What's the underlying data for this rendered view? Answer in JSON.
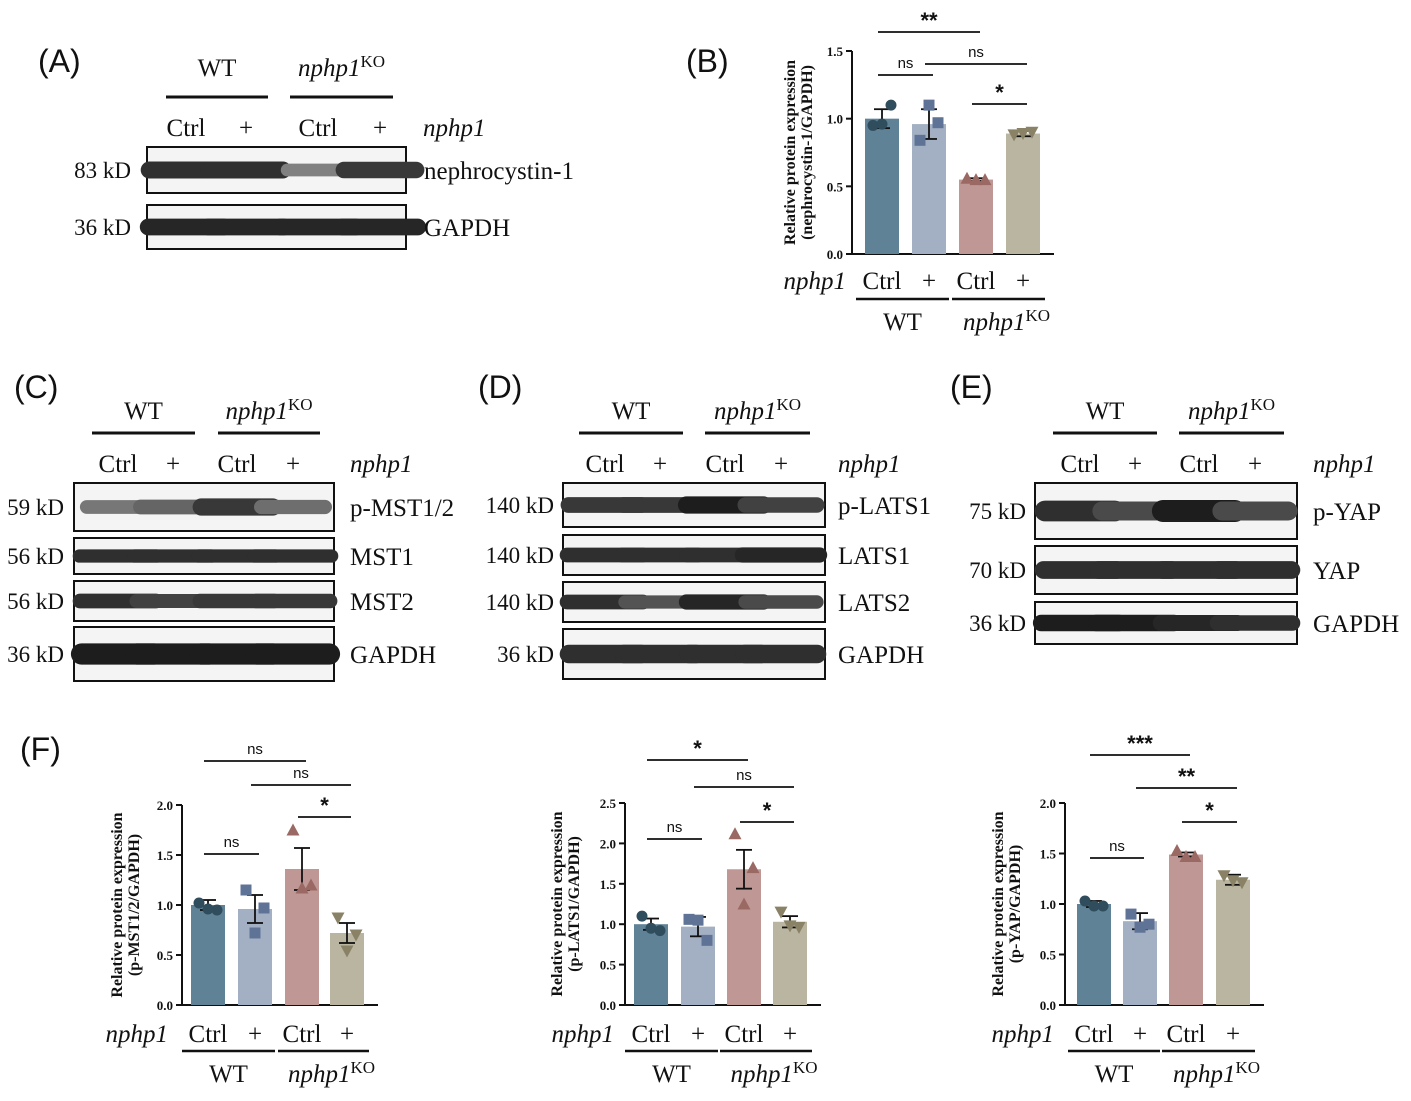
{
  "blots": [
    {
      "panel": "(A)",
      "group_wt": "WT",
      "group_ko": "nphp1",
      "group_ko_sup": "KO",
      "lanes": [
        "Ctrl",
        "+",
        "Ctrl",
        "+"
      ],
      "condition": "nphp1",
      "rows": [
        {
          "kd": "83 kD",
          "protein": "nephrocystin-1",
          "intensity": [
            0.85,
            0.85,
            0.4,
            0.8
          ]
        },
        {
          "kd": "36 kD",
          "protein": "GAPDH",
          "intensity": [
            0.9,
            0.9,
            0.9,
            0.9
          ]
        }
      ]
    },
    {
      "panel": "(C)",
      "group_wt": "WT",
      "group_ko": "nphp1",
      "group_ko_sup": "KO",
      "lanes": [
        "Ctrl",
        "+",
        "Ctrl",
        "+"
      ],
      "condition": "nphp1",
      "rows": [
        {
          "kd": "59 kD",
          "protein": "p-MST1/2",
          "intensity": [
            0.45,
            0.55,
            0.8,
            0.5
          ]
        },
        {
          "kd": "56 kD",
          "protein": "MST1",
          "intensity": [
            0.85,
            0.85,
            0.85,
            0.85
          ]
        },
        {
          "kd": "56 kD",
          "protein": "MST2",
          "intensity": [
            0.85,
            0.75,
            0.8,
            0.8
          ]
        },
        {
          "kd": "36 kD",
          "protein": "GAPDH",
          "intensity": [
            0.95,
            0.95,
            0.95,
            0.95
          ]
        }
      ]
    },
    {
      "panel": "(D)",
      "group_wt": "WT",
      "group_ko": "nphp1",
      "group_ko_sup": "KO",
      "lanes": [
        "Ctrl",
        "+",
        "Ctrl",
        "+"
      ],
      "condition": "nphp1",
      "rows": [
        {
          "kd": "140 kD",
          "protein": "p-LATS1",
          "intensity": [
            0.8,
            0.8,
            0.95,
            0.75
          ]
        },
        {
          "kd": "140 kD",
          "protein": "LATS1",
          "intensity": [
            0.85,
            0.85,
            0.85,
            0.9
          ]
        },
        {
          "kd": "140 kD",
          "protein": "LATS2",
          "intensity": [
            0.85,
            0.65,
            0.9,
            0.7
          ]
        },
        {
          "kd": "36 kD",
          "protein": "GAPDH",
          "intensity": [
            0.85,
            0.85,
            0.85,
            0.85
          ]
        }
      ]
    },
    {
      "panel": "(E)",
      "group_wt": "WT",
      "group_ko": "nphp1",
      "group_ko_sup": "KO",
      "lanes": [
        "Ctrl",
        "+",
        "Ctrl",
        "+"
      ],
      "condition": "nphp1",
      "rows": [
        {
          "kd": "75 kD",
          "protein": "p-YAP",
          "intensity": [
            0.85,
            0.7,
            0.95,
            0.7
          ]
        },
        {
          "kd": "70 kD",
          "protein": "YAP",
          "intensity": [
            0.85,
            0.85,
            0.85,
            0.85
          ]
        },
        {
          "kd": "36 kD",
          "protein": "GAPDH",
          "intensity": [
            0.95,
            0.95,
            0.9,
            0.85
          ]
        }
      ]
    }
  ],
  "chart_data": [
    {
      "panel": "(B)",
      "type": "bar",
      "categories": [
        "Ctrl",
        "+",
        "Ctrl",
        "+"
      ],
      "groups": [
        {
          "label": "WT"
        },
        {
          "label": "nphp1",
          "sup": "KO"
        }
      ],
      "condition_label": "nphp1",
      "ylabel_line1": "Relative protein expression",
      "ylabel_line2": "(nephrocystin-1/GAPDH)",
      "yticks": [
        "0.0",
        "0.5",
        "1.0",
        "1.5"
      ],
      "ylim": [
        0,
        1.5
      ],
      "values": [
        1.0,
        0.96,
        0.55,
        0.89
      ],
      "errors": [
        0.07,
        0.11,
        0.01,
        0.02
      ],
      "points": [
        [
          0.95,
          1.1,
          0.96
        ],
        [
          0.84,
          0.97,
          1.1
        ],
        [
          0.56,
          0.55,
          0.55
        ],
        [
          0.88,
          0.9,
          0.89
        ]
      ],
      "significance": [
        {
          "from": 0,
          "to": 2,
          "label": "**"
        },
        {
          "from": 0,
          "to": 1,
          "label": "ns"
        },
        {
          "from": 1,
          "to": 3,
          "label": "ns"
        },
        {
          "from": 2,
          "to": 3,
          "label": "*"
        }
      ]
    },
    {
      "panel": "(F)",
      "type": "bar",
      "categories": [
        "Ctrl",
        "+",
        "Ctrl",
        "+"
      ],
      "groups": [
        {
          "label": "WT"
        },
        {
          "label": "nphp1",
          "sup": "KO"
        }
      ],
      "condition_label": "nphp1",
      "ylabel_line1": "Relative protein expression",
      "ylabel_line2": "(p-MST1/2/GAPDH)",
      "yticks": [
        "0.0",
        "0.5",
        "1.0",
        "1.5",
        "2.0"
      ],
      "ylim": [
        0,
        2.0
      ],
      "values": [
        1.0,
        0.96,
        1.36,
        0.72
      ],
      "errors": [
        0.05,
        0.14,
        0.21,
        0.1
      ],
      "points": [
        [
          1.02,
          0.95,
          0.96
        ],
        [
          1.15,
          0.97,
          0.72
        ],
        [
          1.75,
          1.2,
          1.17
        ],
        [
          0.87,
          0.7,
          0.54
        ]
      ],
      "significance": [
        {
          "from": 0,
          "to": 2,
          "label": "ns"
        },
        {
          "from": 0,
          "to": 1,
          "label": "ns"
        },
        {
          "from": 1,
          "to": 3,
          "label": "ns"
        },
        {
          "from": 2,
          "to": 3,
          "label": "*"
        }
      ]
    },
    {
      "panel": "",
      "type": "bar",
      "categories": [
        "Ctrl",
        "+",
        "Ctrl",
        "+"
      ],
      "groups": [
        {
          "label": "WT"
        },
        {
          "label": "nphp1",
          "sup": "KO"
        }
      ],
      "condition_label": "nphp1",
      "ylabel_line1": "Relative protein expression",
      "ylabel_line2": "(p-LATS1/GAPDH)",
      "yticks": [
        "0.0",
        "0.5",
        "1.0",
        "1.5",
        "2.0",
        "2.5"
      ],
      "ylim": [
        0,
        2.5
      ],
      "values": [
        1.0,
        0.97,
        1.68,
        1.03
      ],
      "errors": [
        0.07,
        0.12,
        0.24,
        0.07
      ],
      "points": [
        [
          1.1,
          0.92,
          0.95
        ],
        [
          1.06,
          0.8,
          1.05
        ],
        [
          2.12,
          1.7,
          1.25
        ],
        [
          1.15,
          0.96,
          0.98
        ]
      ],
      "significance": [
        {
          "from": 0,
          "to": 2,
          "label": "*"
        },
        {
          "from": 0,
          "to": 1,
          "label": "ns"
        },
        {
          "from": 1,
          "to": 3,
          "label": "ns"
        },
        {
          "from": 2,
          "to": 3,
          "label": "*"
        }
      ]
    },
    {
      "panel": "",
      "type": "bar",
      "categories": [
        "Ctrl",
        "+",
        "Ctrl",
        "+"
      ],
      "groups": [
        {
          "label": "WT"
        },
        {
          "label": "nphp1",
          "sup": "KO"
        }
      ],
      "condition_label": "nphp1",
      "ylabel_line1": "Relative protein expression",
      "ylabel_line2": "(p-YAP/GAPDH)",
      "yticks": [
        "0.0",
        "0.5",
        "1.0",
        "1.5",
        "2.0"
      ],
      "ylim": [
        0,
        2.0
      ],
      "values": [
        1.0,
        0.83,
        1.49,
        1.24
      ],
      "errors": [
        0.03,
        0.08,
        0.02,
        0.05
      ],
      "points": [
        [
          1.03,
          0.98,
          0.98
        ],
        [
          0.9,
          0.8,
          0.77
        ],
        [
          1.53,
          1.47,
          1.47
        ],
        [
          1.28,
          1.21,
          1.23
        ]
      ],
      "significance": [
        {
          "from": 0,
          "to": 2,
          "label": "***"
        },
        {
          "from": 0,
          "to": 1,
          "label": "ns"
        },
        {
          "from": 1,
          "to": 3,
          "label": "**"
        },
        {
          "from": 2,
          "to": 3,
          "label": "*"
        }
      ]
    }
  ],
  "colors": {
    "bars": [
      "#5f8296",
      "#a3b0c4",
      "#bf9895",
      "#bab5a1"
    ],
    "points": [
      "#2f4d5c",
      "#5f7397",
      "#9b6963",
      "#8a8266"
    ],
    "markers": [
      "circle",
      "square",
      "triangle-up",
      "triangle-down"
    ]
  }
}
